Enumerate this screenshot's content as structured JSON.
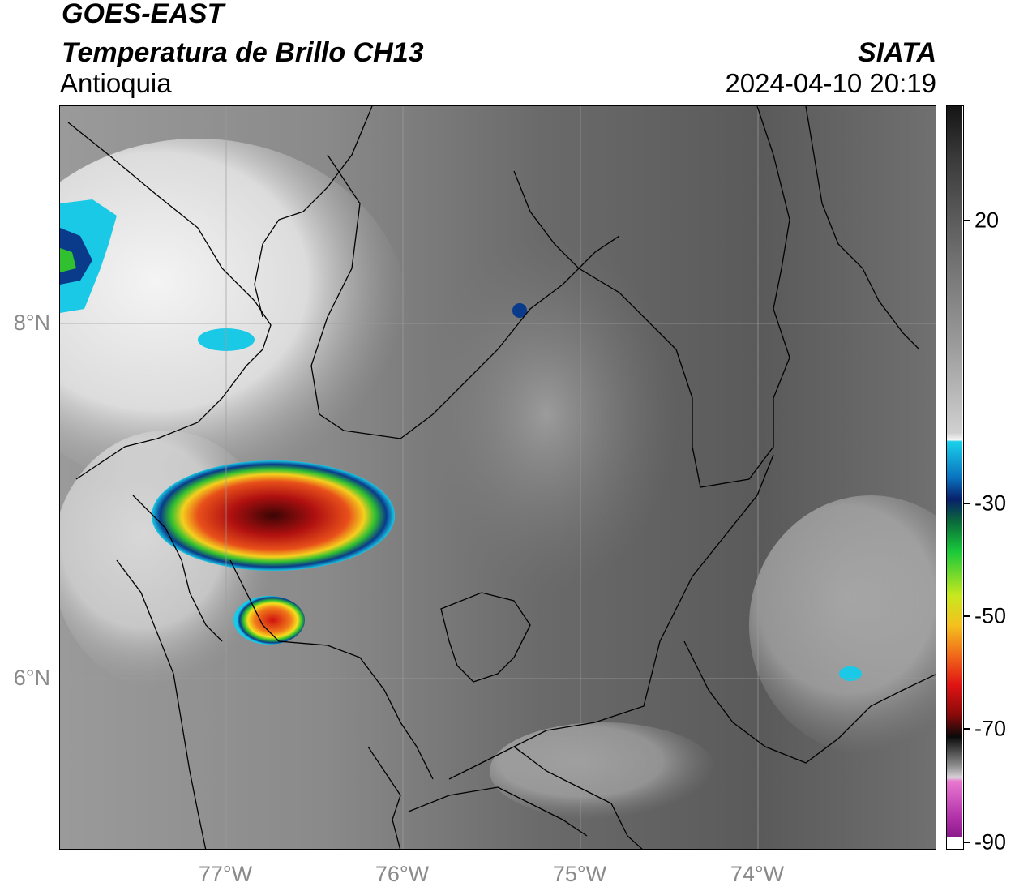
{
  "header": {
    "title_line1": "GOES-EAST",
    "title_line2": "Temperatura de Brillo CH13",
    "source": "SIATA",
    "region": "Antioquia",
    "datetime": "2024-04-10 20:19"
  },
  "axes": {
    "lat_labels": [
      "8°N",
      "6°N"
    ],
    "lon_labels": [
      "77°W",
      "76°W",
      "75°W",
      "74°W"
    ]
  },
  "colorbar": {
    "tick_labels": [
      "20",
      "-30",
      "-50",
      "-70",
      "-90"
    ],
    "palette": {
      "warm": "#3a3a3a",
      "cool": "#f2f2f2",
      "cyan": "#19c9e6",
      "blue": "#08307a",
      "green": "#18b23a",
      "yellow": "#f5e61e",
      "orange": "#f08a1a",
      "red": "#d41414",
      "darkred": "#5a0a0a",
      "black": "#0a0a0a",
      "pink": "#e060c0",
      "purple": "#8a1a8a"
    }
  }
}
